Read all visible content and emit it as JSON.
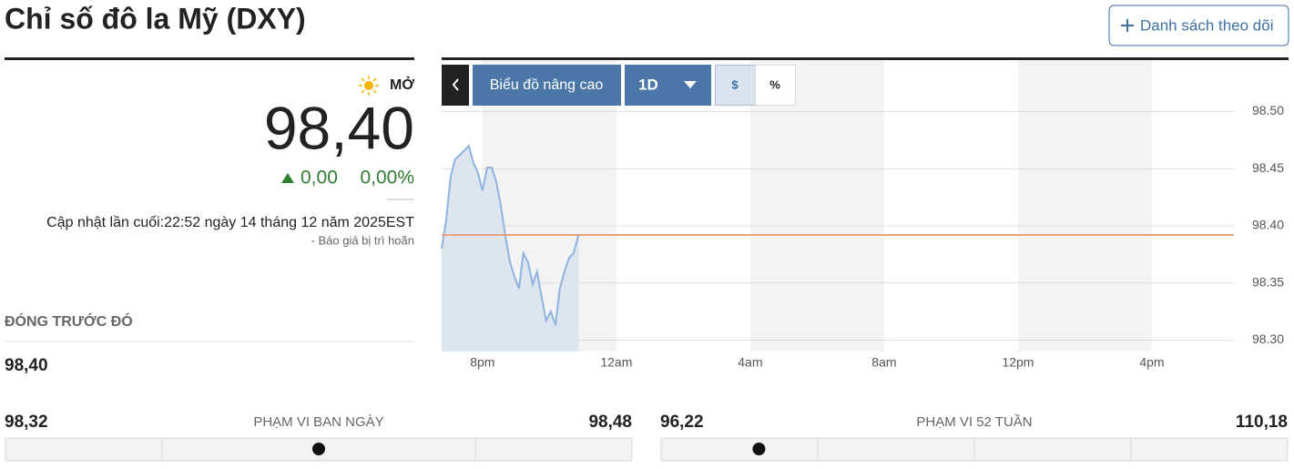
{
  "header": {
    "title": "Chỉ số đô la Mỹ (DXY)",
    "watchlist_button": "Danh sách theo dõi"
  },
  "quote": {
    "status": "MỞ",
    "price": {
      "value": 98.4,
      "label": "98,40"
    },
    "change": "0,00",
    "change_percent": "0,00%",
    "updated": "Cập nhật lần cuối:22:52 ngày 14 tháng 12 năm 2025EST",
    "delay_note": "-  Báo giá bị trì hoãn",
    "previous_close_label": "ĐÓNG TRƯỚC ĐÓ",
    "previous_close": "98,40"
  },
  "ranges": [
    {
      "label": "PHẠM VI BAN NGÀY",
      "low": {
        "value": 98.32,
        "label": "98,32"
      },
      "high": {
        "value": 98.48,
        "label": "98,48"
      }
    },
    {
      "label": "PHẠM VI 52 TUẦN",
      "low": {
        "value": 96.22,
        "label": "96,22"
      },
      "high": {
        "value": 110.18,
        "label": "110,18"
      }
    }
  ],
  "toolbar": {
    "advanced_chart": "Biểu đồ nâng cao",
    "period": "1D",
    "dollar": "$",
    "percent": "%"
  },
  "chart_data": {
    "type": "line",
    "x": [
      18.78,
      18.91,
      19.05,
      19.18,
      19.32,
      19.46,
      19.59,
      19.73,
      19.86,
      20.0,
      20.14,
      20.27,
      20.41,
      20.54,
      20.68,
      20.82,
      20.95,
      21.09,
      21.22,
      21.36,
      21.5,
      21.63,
      21.77,
      21.9,
      22.04,
      22.18,
      22.31,
      22.45,
      22.59,
      22.72,
      22.88
    ],
    "values": [
      98.38,
      98.404,
      98.443,
      98.458,
      98.462,
      98.466,
      98.47,
      98.455,
      98.447,
      98.431,
      98.451,
      98.451,
      98.439,
      98.419,
      98.392,
      98.368,
      98.356,
      98.345,
      98.376,
      98.368,
      98.349,
      98.36,
      98.337,
      98.317,
      98.325,
      98.313,
      98.345,
      98.36,
      98.372,
      98.376,
      98.393
    ],
    "color": "#8fb3e0",
    "area_color": "#dde5ef",
    "reference_line": 98.392,
    "reference_color": "#e6a27a",
    "xlim": [
      18.78,
      42.45
    ],
    "xticks": [
      {
        "value": 20,
        "label": "8pm"
      },
      {
        "value": 24,
        "label": "12am"
      },
      {
        "value": 28,
        "label": "4am"
      },
      {
        "value": 32,
        "label": "8am"
      },
      {
        "value": 36,
        "label": "12pm"
      },
      {
        "value": 40,
        "label": "4pm"
      }
    ],
    "ylim": [
      98.29,
      98.545
    ],
    "yticks": [
      {
        "value": 98.3,
        "label": "98.30"
      },
      98.35,
      {
        "value": 98.4,
        "label": "98.40"
      },
      98.45,
      {
        "value": 98.5,
        "label": "98.50"
      }
    ],
    "grid": true
  }
}
